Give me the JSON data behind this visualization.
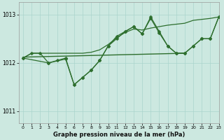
{
  "title": "Graphe pression niveau de la mer (hPa)",
  "background_color": "#cce8e0",
  "grid_color": "#aad4cc",
  "line_color": "#2d6e2d",
  "xlim": [
    -0.5,
    23
  ],
  "ylim": [
    1010.75,
    1013.25
  ],
  "yticks": [
    1011,
    1012,
    1013
  ],
  "xticks": [
    0,
    1,
    2,
    3,
    4,
    5,
    6,
    7,
    8,
    9,
    10,
    11,
    12,
    13,
    14,
    15,
    16,
    17,
    18,
    19,
    20,
    21,
    22,
    23
  ],
  "series_jagged": {
    "x": [
      0,
      1,
      2,
      3,
      4,
      5,
      6,
      7,
      8,
      9,
      10,
      11,
      12,
      13,
      14,
      15,
      16,
      17,
      18,
      19,
      20,
      21,
      22,
      23
    ],
    "y": [
      1012.1,
      1012.2,
      1012.2,
      1012.0,
      1012.05,
      1012.1,
      1011.55,
      1011.7,
      1011.85,
      1012.05,
      1012.35,
      1012.5,
      1012.65,
      1012.75,
      1012.6,
      1012.95,
      1012.65,
      1012.35,
      1012.2,
      1012.2,
      1012.35,
      1012.5,
      1012.5,
      1012.95
    ]
  },
  "series_smooth": {
    "x": [
      0,
      1,
      2,
      3,
      4,
      5,
      6,
      7,
      8,
      9,
      10,
      11,
      12,
      13,
      14,
      15,
      16,
      17,
      18,
      19,
      20,
      21,
      22,
      23
    ],
    "y": [
      1012.1,
      1012.2,
      1012.2,
      1012.2,
      1012.2,
      1012.2,
      1012.2,
      1012.2,
      1012.22,
      1012.27,
      1012.38,
      1012.52,
      1012.63,
      1012.7,
      1012.68,
      1012.72,
      1012.75,
      1012.78,
      1012.8,
      1012.82,
      1012.88,
      1012.9,
      1012.92,
      1012.95
    ]
  },
  "series_partial": {
    "x": [
      0,
      3,
      5,
      6,
      7,
      8,
      9,
      10,
      11,
      12,
      13,
      14,
      15,
      16,
      17,
      18,
      19,
      20,
      21,
      22,
      23
    ],
    "y": [
      1012.1,
      1012.0,
      1012.08,
      1011.55,
      1011.7,
      1011.85,
      1012.05,
      1012.35,
      1012.55,
      1012.65,
      1012.75,
      1012.6,
      1012.92,
      1012.62,
      1012.35,
      1012.2,
      1012.2,
      1012.35,
      1012.5,
      1012.5,
      1012.95
    ]
  },
  "series_flat": {
    "x": [
      0,
      19
    ],
    "y": [
      1012.12,
      1012.2
    ]
  }
}
